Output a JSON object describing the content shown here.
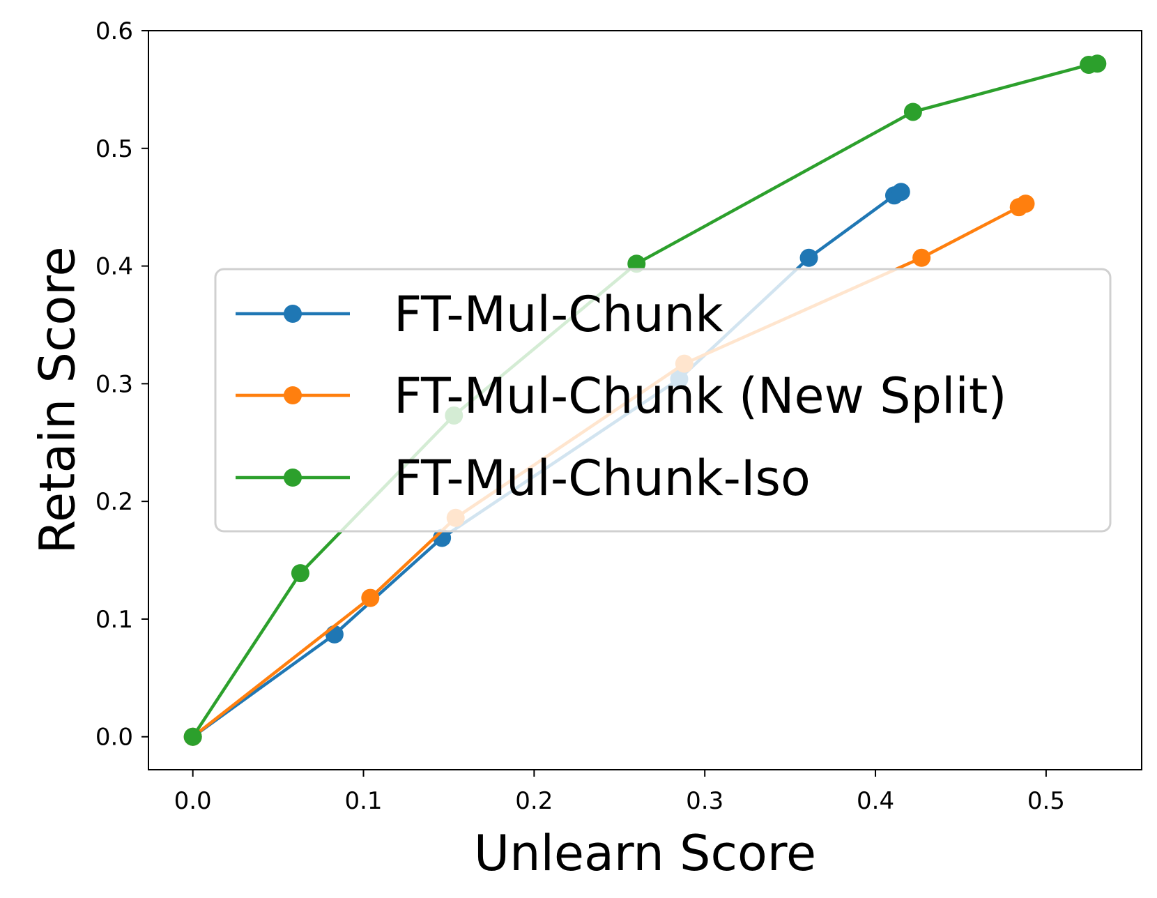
{
  "chart_data": {
    "type": "line",
    "xlabel": "Unlearn Score",
    "ylabel": "Retain Score",
    "xlim": [
      -0.026,
      0.556
    ],
    "ylim": [
      -0.028,
      0.6
    ],
    "xticks": [
      "0.0",
      "0.1",
      "0.2",
      "0.3",
      "0.4",
      "0.5"
    ],
    "yticks": [
      "0.0",
      "0.1",
      "0.2",
      "0.3",
      "0.4",
      "0.5",
      "0.6"
    ],
    "grid": false,
    "legend_position": "center-right",
    "series": [
      {
        "name": "FT-Mul-Chunk",
        "color": "#1f77b4",
        "x": [
          0.0,
          0.083,
          0.146,
          0.285,
          0.361,
          0.411,
          0.415
        ],
        "y": [
          0.0,
          0.087,
          0.169,
          0.304,
          0.407,
          0.46,
          0.463
        ]
      },
      {
        "name": "FT-Mul-Chunk (New Split)",
        "color": "#ff7f0e",
        "x": [
          0.0,
          0.104,
          0.154,
          0.288,
          0.427,
          0.484,
          0.488
        ],
        "y": [
          0.0,
          0.118,
          0.186,
          0.317,
          0.407,
          0.45,
          0.453
        ]
      },
      {
        "name": "FT-Mul-Chunk-Iso",
        "color": "#2ca02c",
        "x": [
          0.0,
          0.063,
          0.153,
          0.26,
          0.422,
          0.525,
          0.53
        ],
        "y": [
          0.0,
          0.139,
          0.273,
          0.402,
          0.531,
          0.571,
          0.572
        ]
      }
    ]
  }
}
